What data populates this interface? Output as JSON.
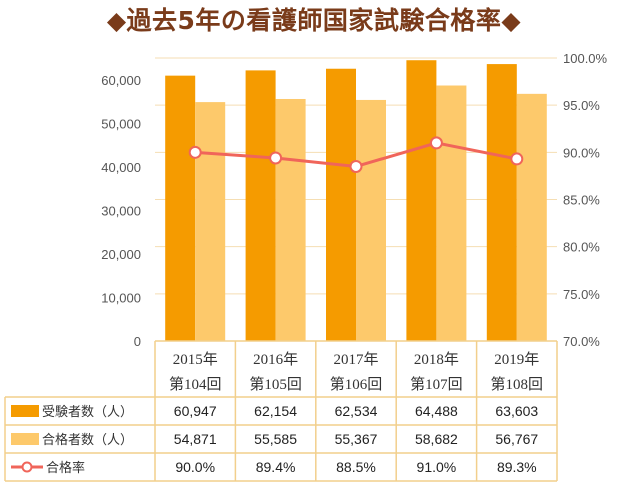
{
  "title": "◆過去5年の看護師国家試験合格率◆",
  "colors": {
    "title": "#7a3b1a",
    "examinees": "#f59b00",
    "passers": "#fdc96b",
    "rate_line": "#f0655a",
    "grid": "#f5deb3",
    "table_border": "#f2cf8c"
  },
  "chart_data": {
    "type": "bar",
    "title": "◆過去5年の看護師国家試験合格率◆",
    "categories": [
      {
        "year": "2015年",
        "exam": "第104回"
      },
      {
        "year": "2016年",
        "exam": "第105回"
      },
      {
        "year": "2017年",
        "exam": "第106回"
      },
      {
        "year": "2018年",
        "exam": "第107回"
      },
      {
        "year": "2019年",
        "exam": "第108回"
      }
    ],
    "series": [
      {
        "name": "受験者数（人）",
        "type": "bar",
        "axis": "left",
        "values": [
          60947,
          62154,
          62534,
          64488,
          63603
        ],
        "labels": [
          "60,947",
          "62,154",
          "62,534",
          "64,488",
          "63,603"
        ]
      },
      {
        "name": "合格者数（人）",
        "type": "bar",
        "axis": "left",
        "values": [
          54871,
          55585,
          55367,
          58682,
          56767
        ],
        "labels": [
          "54,871",
          "55,585",
          "55,367",
          "58,682",
          "56,767"
        ]
      },
      {
        "name": "合格率",
        "type": "line",
        "axis": "right",
        "values": [
          90.0,
          89.4,
          88.5,
          91.0,
          89.3
        ],
        "labels": [
          "90.0%",
          "89.4%",
          "88.5%",
          "91.0%",
          "89.3%"
        ]
      }
    ],
    "y_left": {
      "range": [
        0,
        65000
      ],
      "ticks": [
        0,
        10000,
        20000,
        30000,
        40000,
        50000,
        60000
      ],
      "tick_labels": [
        "0",
        "10,000",
        "20,000",
        "30,000",
        "40,000",
        "50,000",
        "60,000"
      ]
    },
    "y_right": {
      "range": [
        70,
        100
      ],
      "ticks": [
        70,
        75,
        80,
        85,
        90,
        95,
        100
      ],
      "tick_labels": [
        "70.0%",
        "75.0%",
        "80.0%",
        "85.0%",
        "90.0%",
        "95.0%",
        "100.0%"
      ]
    },
    "grid": true,
    "legend": "data-table"
  }
}
